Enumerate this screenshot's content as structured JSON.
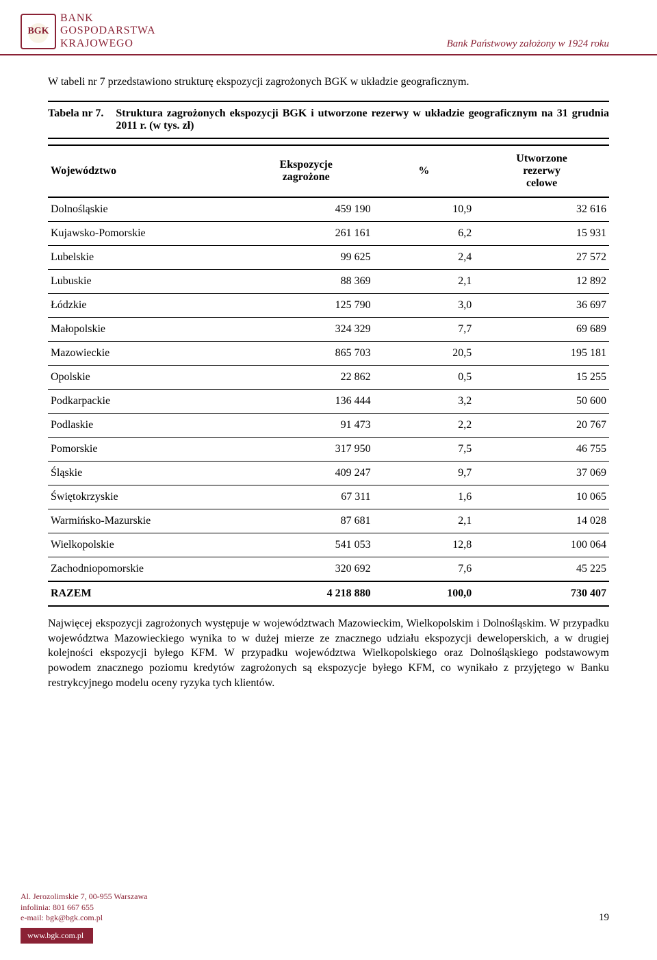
{
  "colors": {
    "brand": "#8a2235",
    "text": "#000000",
    "background": "#ffffff",
    "rule": "#000000"
  },
  "header": {
    "bank_line1": "BANK",
    "bank_line2": "GOSPODARSTWA",
    "bank_line3": "KRAJOWEGO",
    "logo_text": "BGK",
    "founded": "Bank Państwowy założony w 1924 roku"
  },
  "intro": "W tabeli nr 7 przedstawiono strukturę ekspozycji zagrożonych BGK w układzie geograficznym.",
  "table": {
    "label": "Tabela nr 7.",
    "caption": "Struktura zagrożonych ekspozycji BGK i utworzone rezerwy w układzie geograficznym na 31 grudnia 2011 r. (w tys. zł)",
    "columns": {
      "c1": "Województwo",
      "c2_l1": "Ekspozycje",
      "c2_l2": "zagrożone",
      "c3": "%",
      "c4_l1": "Utworzone",
      "c4_l2": "rezerwy",
      "c4_l3": "celowe"
    },
    "col_widths_pct": [
      34,
      24,
      18,
      24
    ],
    "rows": [
      {
        "name": "Dolnośląskie",
        "exp": "459 190",
        "pct": "10,9",
        "res": "32 616"
      },
      {
        "name": "Kujawsko-Pomorskie",
        "exp": "261 161",
        "pct": "6,2",
        "res": "15 931"
      },
      {
        "name": "Lubelskie",
        "exp": "99 625",
        "pct": "2,4",
        "res": "27 572"
      },
      {
        "name": "Lubuskie",
        "exp": "88 369",
        "pct": "2,1",
        "res": "12 892"
      },
      {
        "name": "Łódzkie",
        "exp": "125 790",
        "pct": "3,0",
        "res": "36 697"
      },
      {
        "name": "Małopolskie",
        "exp": "324 329",
        "pct": "7,7",
        "res": "69 689"
      },
      {
        "name": "Mazowieckie",
        "exp": "865 703",
        "pct": "20,5",
        "res": "195 181"
      },
      {
        "name": "Opolskie",
        "exp": "22 862",
        "pct": "0,5",
        "res": "15 255"
      },
      {
        "name": "Podkarpackie",
        "exp": "136 444",
        "pct": "3,2",
        "res": "50 600"
      },
      {
        "name": "Podlaskie",
        "exp": "91 473",
        "pct": "2,2",
        "res": "20 767"
      },
      {
        "name": "Pomorskie",
        "exp": "317 950",
        "pct": "7,5",
        "res": "46 755"
      },
      {
        "name": "Śląskie",
        "exp": "409 247",
        "pct": "9,7",
        "res": "37 069"
      },
      {
        "name": "Świętokrzyskie",
        "exp": "67 311",
        "pct": "1,6",
        "res": "10 065"
      },
      {
        "name": "Warmińsko-Mazurskie",
        "exp": "87 681",
        "pct": "2,1",
        "res": "14 028"
      },
      {
        "name": "Wielkopolskie",
        "exp": "541 053",
        "pct": "12,8",
        "res": "100 064"
      },
      {
        "name": "Zachodniopomorskie",
        "exp": "320 692",
        "pct": "7,6",
        "res": "45 225"
      }
    ],
    "total": {
      "name": "RAZEM",
      "exp": "4 218 880",
      "pct": "100,0",
      "res": "730 407"
    }
  },
  "body_paragraph": "Najwięcej ekspozycji zagrożonych występuje w województwach Mazowieckim, Wielkopolskim i Dolnośląskim. W przypadku województwa Mazowieckiego wynika to w dużej mierze ze znacznego udziału ekspozycji deweloperskich, a w drugiej kolejności ekspozycji byłego KFM. W przypadku województwa Wielkopolskiego oraz Dolnośląskiego podstawowym powodem znacznego poziomu kredytów zagrożonych są ekspozycje byłego KFM, co wynikało z przyjętego w Banku restrykcyjnego modelu oceny ryzyka tych klientów.",
  "footer": {
    "addr_l1": "Al. Jerozolimskie 7, 00-955 Warszawa",
    "addr_l2": "infolinia: 801 667 655",
    "addr_l3": "e-mail: bgk@bgk.com.pl",
    "www": "www.bgk.com.pl",
    "page": "19"
  }
}
